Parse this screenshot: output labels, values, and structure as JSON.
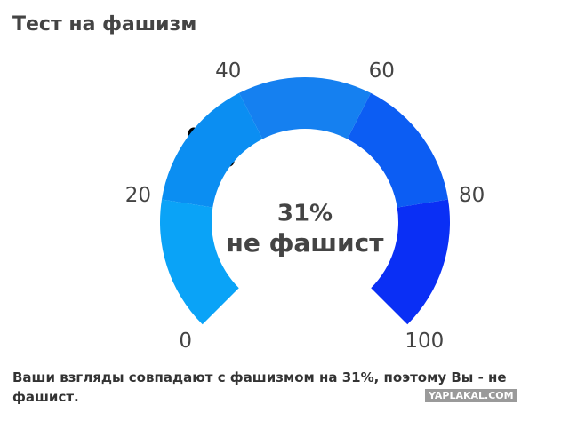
{
  "chart_data": {
    "type": "gauge",
    "title": "Тест на фашизм",
    "ylim": [
      0,
      100
    ],
    "yticks": [
      0,
      20,
      40,
      60,
      80,
      100
    ],
    "bands": [
      {
        "from": 0,
        "to": 20,
        "color": "#0aa3f7"
      },
      {
        "from": 20,
        "to": 40,
        "color": "#0b8ef2"
      },
      {
        "from": 40,
        "to": 60,
        "color": "#1580f0"
      },
      {
        "from": 60,
        "to": 80,
        "color": "#0c5df3"
      },
      {
        "from": 80,
        "to": 100,
        "color": "#0a2ff5"
      }
    ],
    "values": [
      31
    ],
    "value_labels": [
      "31%"
    ],
    "needle_color": "#000000",
    "annotation": "не фашист"
  },
  "footer": "Ваши взгляды совпадают с фашизмом на 31%, поэтому Вы - не фашист.",
  "watermark": "YAPLAKAL.COM"
}
